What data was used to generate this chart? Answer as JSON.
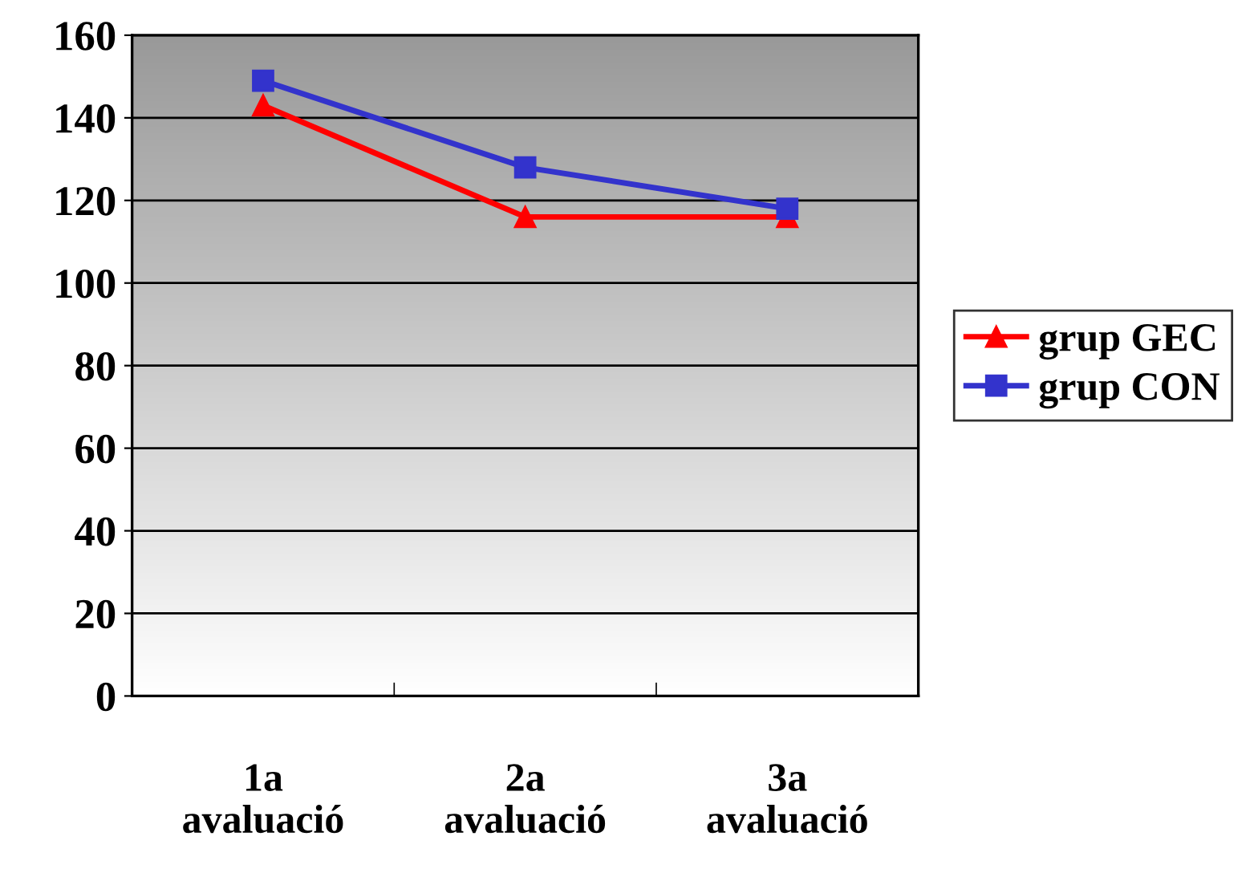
{
  "chart_data": {
    "type": "line",
    "categories": [
      "1a\navaluació",
      "2a\navaluació",
      "3a\navaluació"
    ],
    "series": [
      {
        "name": "grup GEC",
        "color": "#ff0000",
        "values": [
          143,
          116,
          116
        ],
        "marker": "triangle"
      },
      {
        "name": "grup CON",
        "color": "#3333cc",
        "values": [
          149,
          128,
          118
        ],
        "marker": "square"
      }
    ],
    "ylim": [
      0,
      160
    ],
    "yticks": [
      0,
      20,
      40,
      60,
      80,
      100,
      120,
      140,
      160
    ],
    "grid": "y",
    "legend": "right",
    "line_style": "solid"
  }
}
